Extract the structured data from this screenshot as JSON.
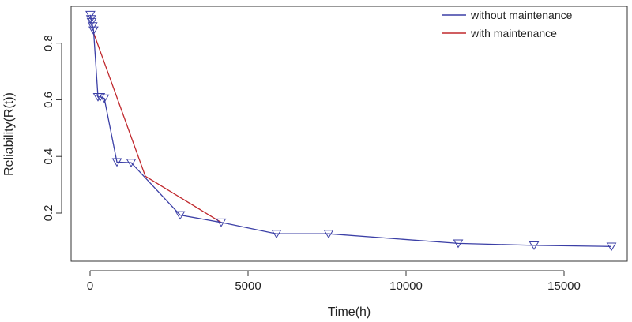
{
  "chart_data": {
    "type": "line",
    "title": "",
    "xlabel": "Time(h)",
    "ylabel": "Reliability(R(t))",
    "xlim": [
      -600,
      17000
    ],
    "ylim": [
      0.03,
      0.93
    ],
    "x_ticks": [
      0,
      5000,
      10000,
      15000
    ],
    "x_tick_labels": [
      "0",
      "5000",
      "10000",
      "15000"
    ],
    "y_ticks": [
      0.2,
      0.4,
      0.6,
      0.8
    ],
    "y_tick_labels": [
      "0.2",
      "0.4",
      "0.6",
      "0.8"
    ],
    "grid": false,
    "legend_position": "top-right",
    "series": [
      {
        "name": "without maintenance",
        "color": "#3b3fa6",
        "marker": "triangle-down",
        "x": [
          10,
          30,
          50,
          80,
          110,
          250,
          320,
          450,
          850,
          1300,
          2850,
          4150,
          5900,
          7550,
          11650,
          14050,
          16500
        ],
        "y": [
          0.9,
          0.885,
          0.875,
          0.86,
          0.845,
          0.61,
          0.61,
          0.605,
          0.38,
          0.378,
          0.193,
          0.167,
          0.127,
          0.127,
          0.093,
          0.086,
          0.082
        ]
      },
      {
        "name": "with maintenance",
        "color": "#c0282d",
        "marker": "none",
        "x": [
          100,
          1750,
          4150
        ],
        "y": [
          0.84,
          0.33,
          0.167
        ]
      }
    ]
  }
}
